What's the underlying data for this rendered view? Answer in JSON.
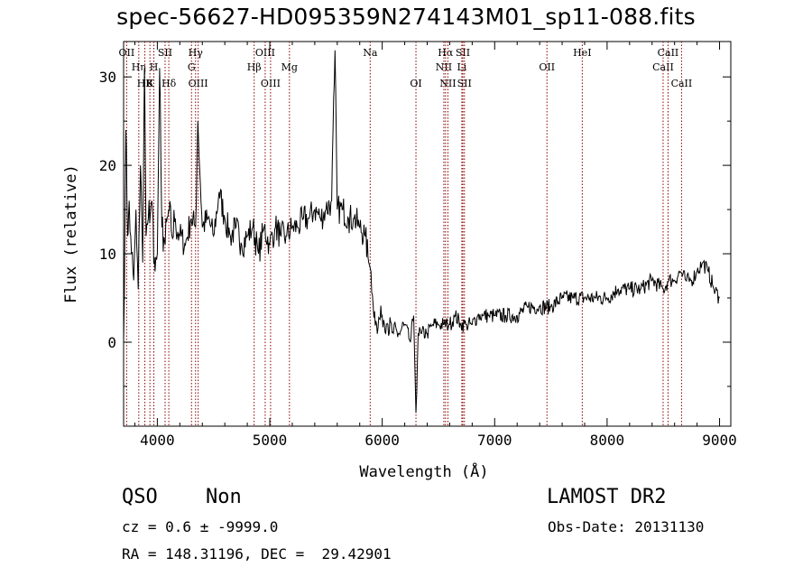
{
  "chart_data": {
    "type": "line",
    "title": "spec-56627-HD095359N274143M01_sp11-088.fits",
    "xlabel": "Wavelength (Å)",
    "ylabel": "Flux (relative)",
    "xlim": [
      3700,
      9100
    ],
    "ylim": [
      -9.5,
      34
    ],
    "x_ticks": [
      4000,
      5000,
      6000,
      7000,
      8000,
      9000
    ],
    "y_ticks": [
      0,
      10,
      20,
      30
    ],
    "grid": false,
    "line_color": "#000000",
    "marker_color": "#8b0000",
    "series": [
      {
        "x": [
          3700,
          3720,
          3735,
          3750,
          3770,
          3790,
          3810,
          3830,
          3850,
          3870,
          3885,
          3900,
          3920,
          3950,
          3980,
          4000,
          4020,
          4040,
          4070,
          4100,
          4130,
          4160,
          4200,
          4250,
          4300,
          4340,
          4360,
          4400,
          4450,
          4500,
          4550,
          4600,
          4650,
          4700,
          4750,
          4800,
          4850,
          4900,
          4950,
          5000,
          5050,
          5100,
          5150,
          5200,
          5250,
          5300,
          5350,
          5400,
          5450,
          5500,
          5550,
          5580,
          5600,
          5650,
          5700,
          5750,
          5800,
          5850,
          5880,
          5900,
          5920,
          5950,
          6000,
          6050,
          6100,
          6150,
          6200,
          6250,
          6280,
          6300,
          6320,
          6350,
          6400,
          6450,
          6500,
          6550,
          6600,
          6650,
          6700,
          6750,
          6800,
          6850,
          6900,
          6950,
          7000,
          7100,
          7200,
          7300,
          7400,
          7500,
          7600,
          7700,
          7800,
          7900,
          8000,
          8100,
          8200,
          8300,
          8400,
          8500,
          8550,
          8600,
          8650,
          8700,
          8750,
          8800,
          8850,
          8900,
          8950,
          9000
        ],
        "y": [
          0,
          24,
          12,
          16,
          10,
          7,
          15,
          6,
          20,
          9,
          31,
          12,
          14,
          16,
          8,
          10,
          31,
          13,
          11,
          15,
          12,
          14,
          12,
          11,
          14,
          13,
          25,
          13,
          14,
          12,
          17,
          14,
          12,
          13,
          11,
          12,
          13,
          10,
          13,
          11,
          13,
          12,
          12,
          13,
          13,
          14,
          14,
          15,
          14,
          15,
          16,
          33,
          15,
          15,
          14,
          14,
          13,
          12,
          9,
          8,
          4,
          2,
          3,
          2,
          1,
          1,
          2,
          0,
          3,
          -8,
          1,
          1,
          1,
          2,
          2,
          2,
          2,
          3,
          2,
          2,
          2,
          3,
          3,
          3,
          3,
          3,
          3,
          4,
          4,
          4,
          5,
          5,
          5,
          5,
          5,
          6,
          6,
          6,
          7,
          6,
          7,
          7,
          8,
          7,
          7,
          8,
          9,
          8,
          6,
          5
        ]
      }
    ],
    "line_markers": [
      {
        "wl": 3727,
        "label": "OII",
        "row": 0
      },
      {
        "wl": 3835,
        "label": "Hη",
        "row": 1
      },
      {
        "wl": 3889,
        "label": "HB",
        "row": 2
      },
      {
        "wl": 3934,
        "label": "K",
        "row": 2
      },
      {
        "wl": 3969,
        "label": "H",
        "row": 1
      },
      {
        "wl": 4069,
        "label": "SII",
        "row": 0
      },
      {
        "wl": 4102,
        "label": "Hδ",
        "row": 2
      },
      {
        "wl": 4304,
        "label": "G",
        "row": 1
      },
      {
        "wl": 4340,
        "label": "Hγ",
        "row": 0
      },
      {
        "wl": 4363,
        "label": "OIII",
        "row": 2
      },
      {
        "wl": 4861,
        "label": "Hβ",
        "row": 1
      },
      {
        "wl": 4959,
        "label": "OIII",
        "row": 0
      },
      {
        "wl": 5007,
        "label": "OIII",
        "row": 2
      },
      {
        "wl": 5175,
        "label": "Mg",
        "row": 1
      },
      {
        "wl": 5893,
        "label": "Na",
        "row": 0
      },
      {
        "wl": 6300,
        "label": "OI",
        "row": 2
      },
      {
        "wl": 6548,
        "label": "NII",
        "row": 1
      },
      {
        "wl": 6563,
        "label": "Hα",
        "row": 0
      },
      {
        "wl": 6584,
        "label": "NII",
        "row": 2
      },
      {
        "wl": 6708,
        "label": "Li",
        "row": 1
      },
      {
        "wl": 6717,
        "label": "SII",
        "row": 0
      },
      {
        "wl": 6731,
        "label": "SII",
        "row": 2
      },
      {
        "wl": 7465,
        "label": "OII",
        "row": 1
      },
      {
        "wl": 7779,
        "label": "HeI",
        "row": 0
      },
      {
        "wl": 8498,
        "label": "CaII",
        "row": 1
      },
      {
        "wl": 8542,
        "label": "CaII",
        "row": 0
      },
      {
        "wl": 8662,
        "label": "CaII",
        "row": 2
      }
    ]
  },
  "info": {
    "class": "QSO",
    "subclass": "Non",
    "survey": "LAMOST DR2",
    "cz": "cz = 0.6 ± -9999.0",
    "obs_date": "Obs-Date: 20131130",
    "coords": "RA = 148.31196, DEC =  29.42901"
  }
}
